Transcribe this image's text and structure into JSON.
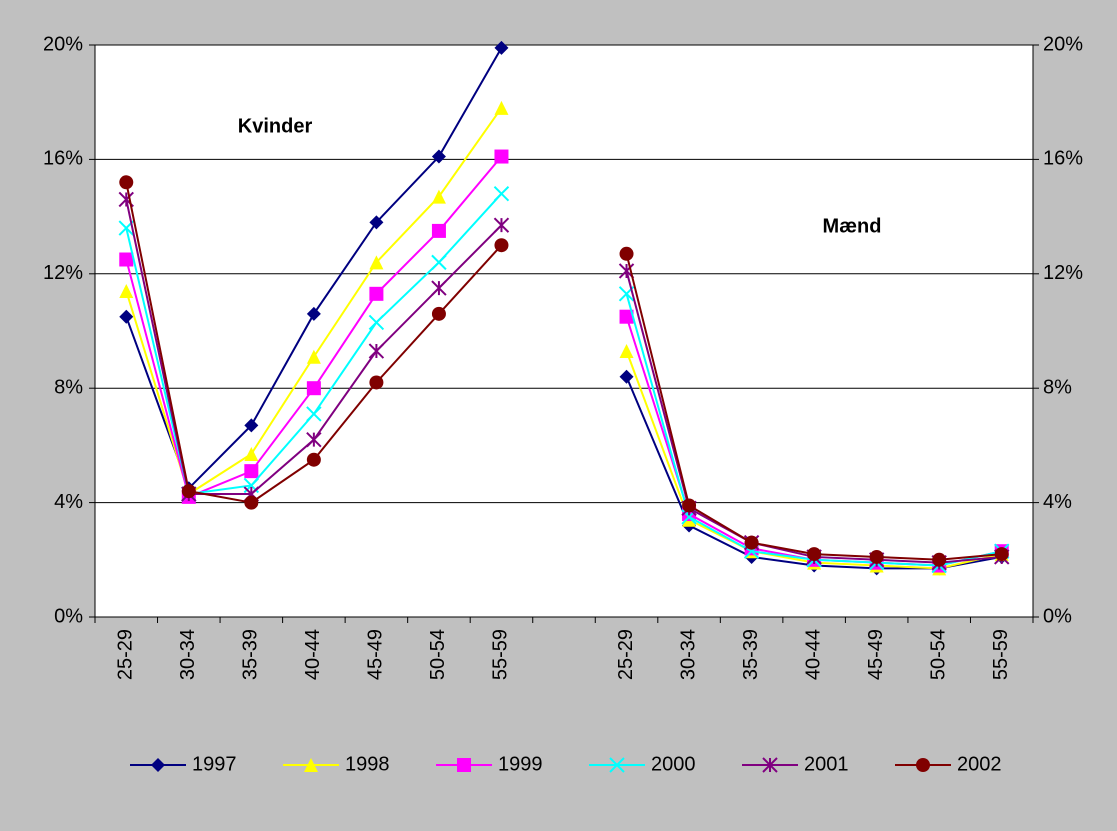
{
  "chart_data": {
    "type": "line",
    "categories": [
      "25-29",
      "30-34",
      "35-39",
      "40-44",
      "45-49",
      "50-54",
      "55-59",
      null,
      "25-29",
      "30-34",
      "35-39",
      "40-44",
      "45-49",
      "50-54",
      "55-59"
    ],
    "annotations": [
      "Kvinder",
      "Mænd"
    ],
    "series": [
      {
        "name": "1997",
        "color": "#000080",
        "marker": "diamond",
        "values": [
          10.5,
          4.5,
          6.7,
          10.6,
          13.8,
          16.1,
          19.9,
          null,
          8.4,
          3.2,
          2.1,
          1.8,
          1.7,
          1.7,
          2.1
        ]
      },
      {
        "name": "1998",
        "color": "#ffff00",
        "marker": "triangle",
        "values": [
          11.4,
          4.3,
          5.7,
          9.1,
          12.4,
          14.7,
          17.8,
          null,
          9.3,
          3.4,
          2.3,
          1.9,
          1.8,
          1.7,
          2.2
        ]
      },
      {
        "name": "1999",
        "color": "#ff00ff",
        "marker": "square",
        "values": [
          12.5,
          4.2,
          5.1,
          8.0,
          11.3,
          13.5,
          16.1,
          null,
          10.5,
          3.6,
          2.4,
          2.0,
          1.9,
          1.8,
          2.3
        ]
      },
      {
        "name": "2000",
        "color": "#00ffff",
        "marker": "x",
        "values": [
          13.6,
          4.3,
          4.6,
          7.1,
          10.3,
          12.4,
          14.8,
          null,
          11.3,
          3.5,
          2.3,
          2.0,
          1.9,
          1.8,
          2.3
        ]
      },
      {
        "name": "2001",
        "color": "#800080",
        "marker": "star",
        "values": [
          14.6,
          4.3,
          4.3,
          6.2,
          9.3,
          11.5,
          13.7,
          null,
          12.1,
          3.8,
          2.6,
          2.1,
          2.0,
          1.9,
          2.1
        ]
      },
      {
        "name": "2002",
        "color": "#800000",
        "marker": "circle",
        "values": [
          15.2,
          4.4,
          4.0,
          5.5,
          8.2,
          10.6,
          13.0,
          null,
          12.7,
          3.9,
          2.6,
          2.2,
          2.1,
          2.0,
          2.2
        ]
      }
    ],
    "ylim": [
      0,
      20
    ],
    "yticks": [
      {
        "value": 0,
        "label": "0%"
      },
      {
        "value": 4,
        "label": "4%"
      },
      {
        "value": 8,
        "label": "8%"
      },
      {
        "value": 12,
        "label": "12%"
      },
      {
        "value": 16,
        "label": "16%"
      },
      {
        "value": 20,
        "label": "20%"
      }
    ],
    "y2lim": [
      0,
      20
    ],
    "y2ticks": [
      {
        "value": 0,
        "label": "0%"
      },
      {
        "value": 4,
        "label": "4%"
      },
      {
        "value": 8,
        "label": "8%"
      },
      {
        "value": 12,
        "label": "12%"
      },
      {
        "value": 16,
        "label": "16%"
      },
      {
        "value": 20,
        "label": "20%"
      }
    ],
    "grid": true,
    "legend": "bottom"
  }
}
